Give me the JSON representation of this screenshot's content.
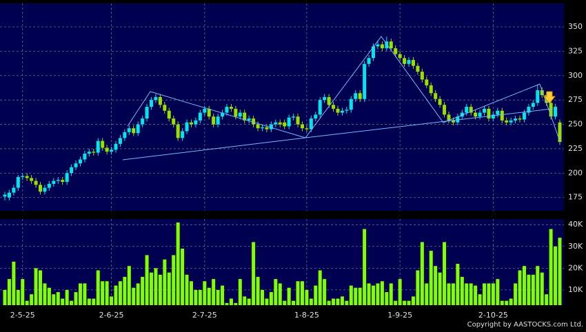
{
  "chart_data": [
    {
      "type": "candlestick",
      "up_color": "#00e5ee",
      "down_color": "#99e000",
      "ylim": [
        161.4,
        374
      ],
      "yticks": [
        175,
        200,
        225,
        250,
        275,
        300,
        325,
        350
      ],
      "grid": true,
      "open": [
        176,
        175,
        180,
        185,
        196,
        197,
        195,
        192,
        188,
        181,
        185,
        189,
        192,
        193,
        191,
        200,
        206,
        210,
        214,
        220,
        222,
        221,
        233,
        226,
        222,
        224,
        230,
        236,
        242,
        246,
        241,
        250,
        256,
        268,
        275,
        278,
        270,
        264,
        256,
        250,
        236,
        243,
        252,
        250,
        254,
        262,
        266,
        258,
        250,
        258,
        262,
        268,
        266,
        258,
        262,
        254,
        256,
        250,
        246,
        247,
        245,
        250,
        252,
        252,
        248,
        257,
        258,
        250,
        246,
        245,
        256,
        260,
        275,
        278,
        270,
        266,
        262,
        264,
        265,
        276,
        282,
        276,
        312,
        318,
        330,
        332,
        328,
        335,
        328,
        322,
        318,
        312,
        316,
        310,
        304,
        296,
        290,
        282,
        276,
        270,
        260,
        254,
        252,
        258,
        262,
        268,
        262,
        258,
        262,
        266,
        256,
        260,
        264,
        254,
        252,
        254,
        256,
        255,
        262,
        268,
        272,
        285,
        280,
        272,
        258,
        252
      ],
      "high": [
        181,
        183,
        188,
        198,
        200,
        200,
        198,
        195,
        191,
        188,
        192,
        195,
        196,
        196,
        203,
        209,
        213,
        217,
        223,
        225,
        225,
        236,
        236,
        229,
        227,
        233,
        239,
        245,
        249,
        249,
        253,
        259,
        271,
        278,
        281,
        281,
        273,
        267,
        259,
        253,
        246,
        255,
        255,
        257,
        265,
        269,
        269,
        261,
        261,
        265,
        271,
        271,
        269,
        265,
        265,
        259,
        259,
        253,
        250,
        250,
        253,
        255,
        255,
        255,
        260,
        261,
        261,
        253,
        249,
        259,
        263,
        278,
        281,
        281,
        273,
        269,
        267,
        268,
        279,
        285,
        285,
        315,
        321,
        333,
        336,
        335,
        340,
        338,
        331,
        325,
        321,
        319,
        319,
        313,
        307,
        299,
        293,
        285,
        279,
        273,
        263,
        257,
        261,
        265,
        271,
        271,
        265,
        265,
        269,
        269,
        263,
        267,
        267,
        257,
        257,
        259,
        259,
        265,
        271,
        275,
        291,
        288,
        283,
        275,
        271,
        255
      ],
      "low": [
        172,
        172,
        177,
        182,
        193,
        192,
        189,
        185,
        178,
        178,
        182,
        186,
        189,
        188,
        188,
        197,
        203,
        207,
        211,
        217,
        218,
        218,
        223,
        219,
        219,
        221,
        227,
        233,
        239,
        238,
        238,
        247,
        253,
        265,
        272,
        267,
        261,
        253,
        247,
        233,
        233,
        240,
        247,
        247,
        251,
        259,
        255,
        247,
        247,
        255,
        259,
        263,
        255,
        255,
        251,
        251,
        247,
        243,
        243,
        242,
        242,
        247,
        247,
        245,
        245,
        254,
        247,
        243,
        242,
        242,
        253,
        257,
        272,
        267,
        263,
        259,
        259,
        261,
        262,
        273,
        273,
        273,
        309,
        315,
        327,
        325,
        325,
        325,
        319,
        315,
        309,
        309,
        307,
        301,
        293,
        287,
        279,
        273,
        267,
        257,
        251,
        249,
        249,
        255,
        259,
        259,
        255,
        255,
        259,
        253,
        253,
        257,
        251,
        249,
        249,
        251,
        252,
        252,
        259,
        265,
        269,
        277,
        269,
        255,
        255,
        229
      ],
      "close": [
        178,
        180,
        185,
        196,
        197,
        195,
        192,
        188,
        181,
        185,
        189,
        192,
        193,
        191,
        200,
        206,
        210,
        214,
        220,
        222,
        221,
        233,
        226,
        222,
        224,
        230,
        236,
        242,
        246,
        241,
        250,
        256,
        268,
        275,
        278,
        270,
        264,
        256,
        250,
        236,
        243,
        252,
        250,
        254,
        262,
        266,
        258,
        250,
        258,
        262,
        268,
        266,
        258,
        262,
        254,
        256,
        250,
        246,
        247,
        245,
        250,
        252,
        250,
        248,
        257,
        258,
        250,
        246,
        245,
        256,
        260,
        275,
        278,
        270,
        266,
        262,
        264,
        265,
        276,
        282,
        276,
        312,
        318,
        330,
        332,
        328,
        335,
        328,
        322,
        318,
        312,
        316,
        310,
        304,
        296,
        290,
        282,
        276,
        270,
        260,
        254,
        252,
        258,
        262,
        268,
        262,
        258,
        262,
        266,
        256,
        260,
        264,
        254,
        252,
        254,
        256,
        255,
        262,
        268,
        272,
        285,
        280,
        272,
        258,
        268,
        232
      ]
    },
    {
      "type": "bar",
      "color": "#80ff00",
      "ylim": [
        3000,
        42600
      ],
      "yticks": [
        {
          "value": 10000,
          "label": "10K"
        },
        {
          "value": 20000,
          "label": "20K"
        },
        {
          "value": 30000,
          "label": "30K"
        },
        {
          "value": 40000,
          "label": "40K"
        }
      ],
      "grid": true,
      "categories": [
        null,
        null,
        null,
        null,
        "2-5-25",
        null,
        null,
        null,
        null,
        null,
        null,
        null,
        null,
        null,
        null,
        null,
        null,
        null,
        null,
        null,
        null,
        null,
        null,
        null,
        "2-6-25",
        null,
        null,
        null,
        null,
        null,
        null,
        null,
        null,
        null,
        null,
        null,
        null,
        null,
        null,
        null,
        null,
        null,
        null,
        null,
        null,
        "2-7-25",
        null,
        null,
        null,
        null,
        null,
        null,
        null,
        null,
        null,
        null,
        null,
        null,
        null,
        null,
        null,
        null,
        null,
        null,
        null,
        null,
        null,
        null,
        "1-8-25",
        null,
        null,
        null,
        null,
        null,
        null,
        null,
        null,
        null,
        null,
        null,
        null,
        null,
        null,
        null,
        null,
        null,
        null,
        null,
        null,
        "1-9-25",
        null,
        null,
        null,
        null,
        null,
        null,
        null,
        null,
        null,
        null,
        null,
        null,
        null,
        null,
        null,
        null,
        null,
        null,
        null,
        null,
        "2-10-25",
        null,
        null,
        null,
        null,
        null,
        null,
        null,
        null,
        null,
        null,
        null,
        null,
        null,
        null,
        null
      ],
      "values": [
        10000,
        15000,
        23000,
        10000,
        15000,
        5000,
        8000,
        20000,
        19000,
        13000,
        11000,
        8000,
        9000,
        6000,
        10000,
        5000,
        9000,
        13000,
        13000,
        6000,
        6000,
        19000,
        14000,
        14000,
        7000,
        12000,
        14000,
        16000,
        21000,
        11000,
        13000,
        16000,
        26000,
        18000,
        20000,
        17000,
        24000,
        18000,
        26000,
        41000,
        29000,
        17000,
        14000,
        10000,
        10000,
        14000,
        11000,
        15000,
        10000,
        12000,
        4000,
        6000,
        4000,
        15000,
        7000,
        6000,
        32000,
        16000,
        10000,
        6000,
        9000,
        15000,
        13000,
        5000,
        11000,
        5000,
        14000,
        14000,
        10000,
        6000,
        12000,
        19000,
        15000,
        5000,
        6000,
        6000,
        7000,
        5000,
        12000,
        11000,
        11000,
        38000,
        13000,
        12000,
        13000,
        14000,
        9000,
        13000,
        5000,
        15000,
        5000,
        5000,
        7000,
        19000,
        32000,
        13000,
        28000,
        21000,
        18000,
        32000,
        13000,
        13000,
        22000,
        16000,
        13000,
        13000,
        12000,
        8000,
        13000,
        13000,
        13000,
        15000,
        5000,
        5000,
        6000,
        13000,
        19000,
        21000,
        17000,
        17000,
        21000,
        18000,
        8000,
        38000,
        30000,
        34000
      ]
    }
  ],
  "copyright": "Copyright by AASTOCKS.com Ltd."
}
